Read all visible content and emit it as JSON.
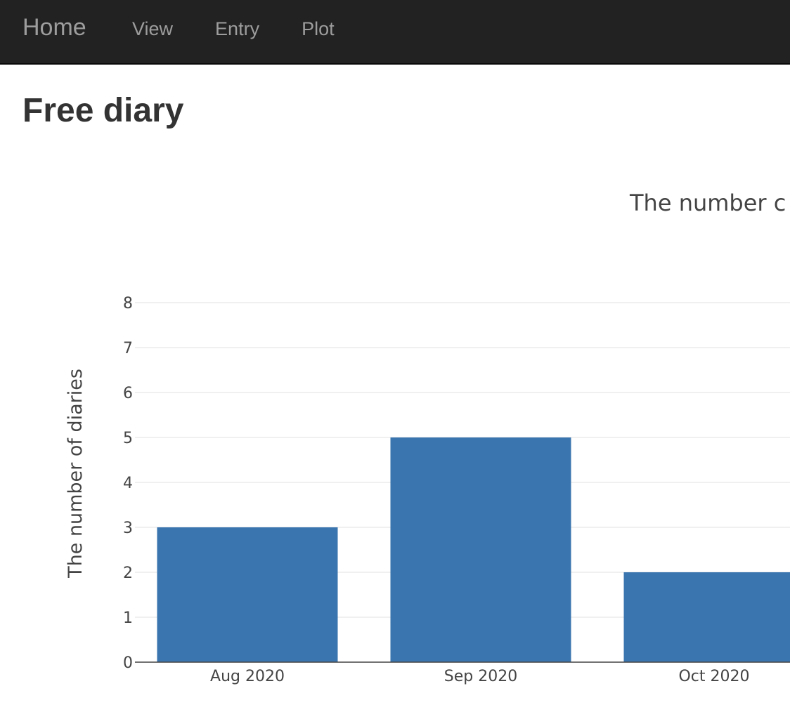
{
  "navbar": {
    "brand": "Home",
    "links": [
      "View",
      "Entry",
      "Plot"
    ]
  },
  "page": {
    "title": "Free diary"
  },
  "colors": {
    "navbar_bg": "#222222",
    "bar": "#3b75af",
    "grid": "#ebebeb"
  },
  "chart_data": {
    "type": "bar",
    "title": "The number c",
    "xlabel": "",
    "ylabel": "The number of diaries",
    "categories": [
      "Aug 2020",
      "Sep 2020",
      "Oct 2020"
    ],
    "values": [
      3,
      5,
      2
    ],
    "ylim": [
      0,
      8
    ],
    "yticks": [
      0,
      1,
      2,
      3,
      4,
      5,
      6,
      7,
      8
    ],
    "grid": true
  }
}
